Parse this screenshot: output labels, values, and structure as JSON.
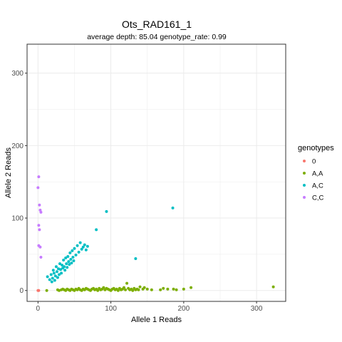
{
  "chart_data": {
    "type": "scatter",
    "title": "Ots_RAD161_1",
    "subtitle": "average depth:  85.04  genotype_rate:  0.99",
    "xlabel": "Allele 1 Reads",
    "ylabel": "Allele 2 Reads",
    "xlim": [
      -15,
      340
    ],
    "ylim": [
      -15,
      340
    ],
    "x_ticks": [
      0,
      100,
      200,
      300
    ],
    "y_ticks": [
      0,
      100,
      200,
      300
    ],
    "x_tick_labels": [
      "0",
      "100",
      "200",
      "300"
    ],
    "y_tick_labels": [
      "0",
      "100",
      "200",
      "300"
    ],
    "grid": true,
    "legend": {
      "title": "genotypes",
      "position": "right"
    },
    "series": [
      {
        "name": "0",
        "color": "#F8766D",
        "points": [
          [
            0,
            0
          ],
          [
            1,
            0
          ]
        ]
      },
      {
        "name": "A,A",
        "color": "#7CAE00",
        "points": [
          [
            12,
            0
          ],
          [
            27,
            1
          ],
          [
            29,
            0
          ],
          [
            32,
            1
          ],
          [
            34,
            2
          ],
          [
            36,
            1
          ],
          [
            38,
            0
          ],
          [
            40,
            2
          ],
          [
            42,
            1
          ],
          [
            44,
            0
          ],
          [
            46,
            2
          ],
          [
            48,
            1
          ],
          [
            50,
            0
          ],
          [
            52,
            2
          ],
          [
            54,
            1
          ],
          [
            56,
            3
          ],
          [
            58,
            1
          ],
          [
            60,
            0
          ],
          [
            62,
            2
          ],
          [
            64,
            1
          ],
          [
            66,
            3
          ],
          [
            68,
            2
          ],
          [
            70,
            1
          ],
          [
            72,
            0
          ],
          [
            74,
            2
          ],
          [
            76,
            3
          ],
          [
            78,
            1
          ],
          [
            80,
            2
          ],
          [
            82,
            0
          ],
          [
            84,
            3
          ],
          [
            86,
            1
          ],
          [
            88,
            2
          ],
          [
            90,
            4
          ],
          [
            92,
            1
          ],
          [
            94,
            3
          ],
          [
            96,
            2
          ],
          [
            98,
            1
          ],
          [
            100,
            0
          ],
          [
            102,
            2
          ],
          [
            104,
            3
          ],
          [
            106,
            1
          ],
          [
            108,
            2
          ],
          [
            110,
            0
          ],
          [
            112,
            3
          ],
          [
            114,
            1
          ],
          [
            116,
            2
          ],
          [
            118,
            4
          ],
          [
            120,
            1
          ],
          [
            122,
            10
          ],
          [
            124,
            3
          ],
          [
            126,
            1
          ],
          [
            128,
            2
          ],
          [
            130,
            0
          ],
          [
            132,
            3
          ],
          [
            134,
            1
          ],
          [
            136,
            2
          ],
          [
            138,
            1
          ],
          [
            140,
            5
          ],
          [
            144,
            2
          ],
          [
            146,
            4
          ],
          [
            150,
            2
          ],
          [
            156,
            1
          ],
          [
            168,
            1
          ],
          [
            172,
            3
          ],
          [
            178,
            2
          ],
          [
            186,
            2
          ],
          [
            190,
            1
          ],
          [
            200,
            2
          ],
          [
            210,
            4
          ],
          [
            323,
            5
          ]
        ]
      },
      {
        "name": "A,C",
        "color": "#00BFC4",
        "points": [
          [
            13,
            19
          ],
          [
            16,
            15
          ],
          [
            18,
            22
          ],
          [
            19,
            12
          ],
          [
            20,
            17
          ],
          [
            21,
            28
          ],
          [
            22,
            24
          ],
          [
            23,
            14
          ],
          [
            24,
            20
          ],
          [
            25,
            33
          ],
          [
            26,
            26
          ],
          [
            27,
            18
          ],
          [
            28,
            30
          ],
          [
            29,
            22
          ],
          [
            30,
            37
          ],
          [
            31,
            29
          ],
          [
            32,
            24
          ],
          [
            33,
            35
          ],
          [
            34,
            31
          ],
          [
            35,
            42
          ],
          [
            36,
            33
          ],
          [
            37,
            28
          ],
          [
            38,
            45
          ],
          [
            39,
            37
          ],
          [
            40,
            32
          ],
          [
            41,
            47
          ],
          [
            42,
            40
          ],
          [
            43,
            36
          ],
          [
            44,
            52
          ],
          [
            45,
            43
          ],
          [
            46,
            38
          ],
          [
            47,
            55
          ],
          [
            48,
            46
          ],
          [
            49,
            41
          ],
          [
            50,
            58
          ],
          [
            52,
            49
          ],
          [
            54,
            62
          ],
          [
            56,
            53
          ],
          [
            58,
            66
          ],
          [
            60,
            57
          ],
          [
            62,
            60
          ],
          [
            64,
            63
          ],
          [
            66,
            56
          ],
          [
            68,
            61
          ],
          [
            80,
            84
          ],
          [
            94,
            109
          ],
          [
            134,
            44
          ],
          [
            185,
            114
          ]
        ]
      },
      {
        "name": "C,C",
        "color": "#C77CFF",
        "points": [
          [
            0,
            142
          ],
          [
            1,
            157
          ],
          [
            2,
            118
          ],
          [
            3,
            111
          ],
          [
            4,
            108
          ],
          [
            1,
            90
          ],
          [
            2,
            84
          ],
          [
            1,
            62
          ],
          [
            3,
            60
          ],
          [
            4,
            46
          ]
        ]
      }
    ]
  }
}
